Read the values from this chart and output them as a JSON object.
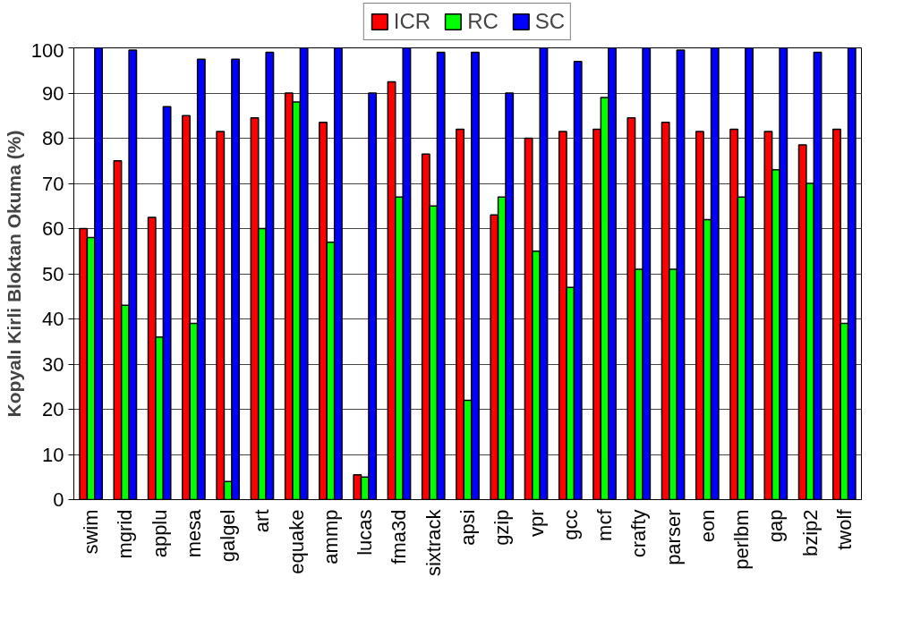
{
  "chart_data": {
    "type": "bar",
    "ylabel": "Kopyalı Kirli Bloktan Okuma (%)",
    "categories": [
      "swim",
      "mgrid",
      "applu",
      "mesa",
      "galgel",
      "art",
      "equake",
      "ammp",
      "lucas",
      "fma3d",
      "sixtrack",
      "apsi",
      "gzip",
      "vpr",
      "gcc",
      "mcf",
      "crafty",
      "parser",
      "eon",
      "perlbm",
      "gap",
      "bzip2",
      "twolf"
    ],
    "series": [
      {
        "name": "ICR",
        "color": "#ff0000",
        "values": [
          60,
          75,
          62.5,
          85,
          81.5,
          84.5,
          90,
          83.5,
          5.5,
          92.5,
          76.5,
          82,
          63,
          80,
          81.5,
          82,
          84.5,
          83.5,
          81.5,
          82,
          81.5,
          78.5,
          82
        ]
      },
      {
        "name": "RC",
        "color": "#00ff00",
        "values": [
          58,
          43,
          36,
          39,
          4,
          60,
          88,
          57,
          5,
          67,
          65,
          22,
          67,
          55,
          47,
          89,
          51,
          51,
          62,
          67,
          73,
          70,
          39
        ]
      },
      {
        "name": "SC",
        "color": "#0000ff",
        "values": [
          100,
          99.5,
          87,
          97.5,
          97.5,
          99,
          100,
          100,
          90,
          100,
          99,
          99,
          90,
          100,
          97,
          100,
          100,
          99.5,
          100,
          100,
          100,
          99,
          100
        ]
      }
    ],
    "ylim": [
      0,
      100
    ],
    "yticks": [
      0,
      10,
      20,
      30,
      40,
      50,
      60,
      70,
      80,
      90,
      100
    ],
    "grid": "y",
    "legend": "top"
  }
}
